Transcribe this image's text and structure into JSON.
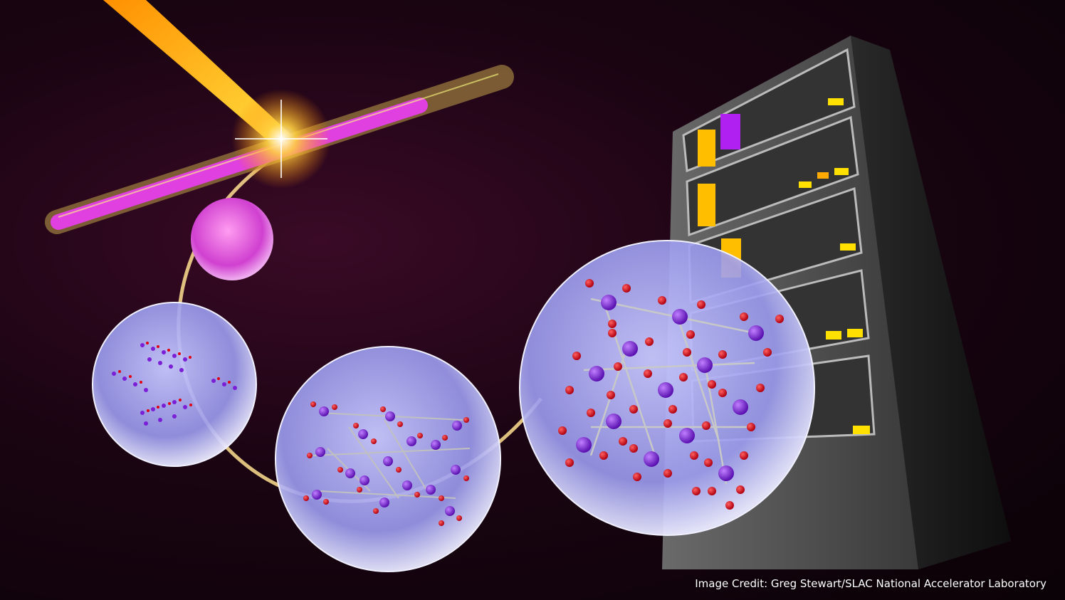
{
  "image": {
    "subject": "X-ray laser beam hitting a sample tube, with crystal structures in bubbles and a server rack",
    "credit": "Image Credit: Greg Stewart/SLAC National Accelerator Laboratory"
  },
  "colors": {
    "beam": "#ffb000",
    "sample": "#e040e0",
    "atom_metal": "#7a1fd6",
    "atom_oxygen": "#e00010",
    "bubble": "#b8b8ff",
    "server_led": "#ffe000"
  }
}
